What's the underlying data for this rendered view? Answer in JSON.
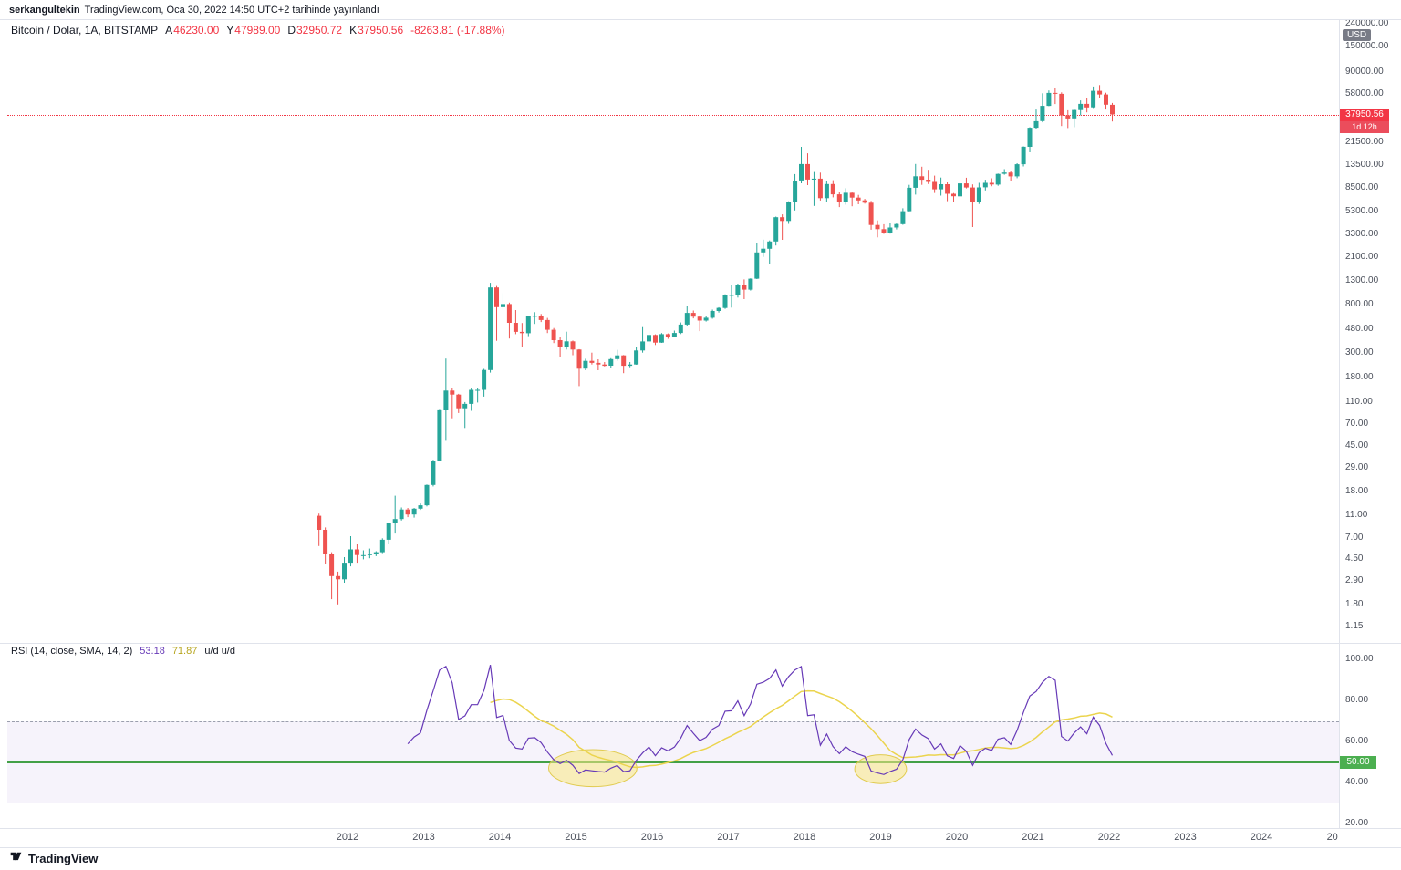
{
  "header": {
    "author": "serkangultekin",
    "published": "TradingView.com, Oca 30, 2022 14:50 UTC+2 tarihinde yayınlandı"
  },
  "symbol": {
    "title": "Bitcoin / Dolar, 1A, BITSTAMP",
    "ohlc": [
      {
        "k": "A",
        "v": "46230.00"
      },
      {
        "k": "Y",
        "v": "47989.00"
      },
      {
        "k": "D",
        "v": "32950.72"
      },
      {
        "k": "K",
        "v": "37950.56"
      }
    ],
    "change": "-8263.81 (-17.88%)"
  },
  "price_axis": {
    "currency": "USD",
    "last_price": "37950.56",
    "countdown": "1d 12h",
    "ticks": [
      "240000.00",
      "150000.00",
      "90000.00",
      "58000.00",
      "21500.00",
      "13500.00",
      "8500.00",
      "5300.00",
      "3300.00",
      "2100.00",
      "1300.00",
      "800.00",
      "480.00",
      "300.00",
      "180.00",
      "110.00",
      "70.00",
      "45.00",
      "29.00",
      "18.00",
      "11.00",
      "7.00",
      "4.50",
      "2.90",
      "1.80",
      "1.15"
    ]
  },
  "rsi": {
    "legend_title": "RSI (14, close, SMA, 14, 2)",
    "rsi_value": "53.18",
    "ma_value": "71.87",
    "extra": "u/d  u/d",
    "ticks": [
      "100.00",
      "80.00",
      "60.00",
      "40.00",
      "20.00"
    ],
    "mid_badge": "50.00"
  },
  "time_axis": {
    "ticks": [
      {
        "label": "2012",
        "t": 2012
      },
      {
        "label": "2013",
        "t": 2013
      },
      {
        "label": "2014",
        "t": 2014
      },
      {
        "label": "2015",
        "t": 2015
      },
      {
        "label": "2016",
        "t": 2016
      },
      {
        "label": "2017",
        "t": 2017
      },
      {
        "label": "2018",
        "t": 2018
      },
      {
        "label": "2019",
        "t": 2019
      },
      {
        "label": "2020",
        "t": 2020
      },
      {
        "label": "2021",
        "t": 2021
      },
      {
        "label": "2022",
        "t": 2022
      },
      {
        "label": "2023",
        "t": 2023
      },
      {
        "label": "2024",
        "t": 2024
      },
      {
        "label": "20",
        "t": 2024.93
      }
    ]
  },
  "footer": {
    "brand": "TradingView"
  },
  "colors": {
    "candle_up": "#26a69a",
    "candle_down": "#ef5350",
    "last_price_badge": "#f23645",
    "countdown_badge": "#eb4d5c",
    "last_price_line": "#f23645",
    "rsi_line": "#673ab7",
    "rsi_ma": "#eBd44d",
    "rsi_band_fill": "rgba(103,58,183,0.06)",
    "rsi_band_border": "#9b9fad",
    "mid_line": "#43a047",
    "mid_badge": "#4caf50",
    "usd_badge": "#787b86",
    "axis_text": "#4a4f5a",
    "highlight_fill": "rgba(249,231,132,0.55)",
    "highlight_stroke": "rgba(222,199,63,0.9)"
  },
  "chart_data": {
    "type": "candlestick",
    "title": "Bitcoin / Dolar, 1A, BITSTAMP",
    "interval": "1 month",
    "price_scale": "log",
    "price_range": [
      1.15,
      240000
    ],
    "grid": "off",
    "last": {
      "open": 46230.0,
      "high": 47989.0,
      "low": 32950.72,
      "close": 37950.56,
      "change": -8263.81,
      "change_pct": -17.88
    },
    "candles_format": [
      "month",
      "open",
      "high",
      "low",
      "close"
    ],
    "candles": [
      [
        "2011-08",
        10.9,
        11.4,
        5.9,
        8.2
      ],
      [
        "2011-09",
        8.2,
        8.6,
        4.1,
        5.0
      ],
      [
        "2011-10",
        5.0,
        5.2,
        2.0,
        3.2
      ],
      [
        "2011-11",
        3.2,
        3.5,
        1.8,
        3.0
      ],
      [
        "2011-12",
        3.0,
        4.7,
        2.8,
        4.2
      ],
      [
        "2012-01",
        4.2,
        7.2,
        3.9,
        5.5
      ],
      [
        "2012-02",
        5.5,
        6.2,
        4.2,
        4.9
      ],
      [
        "2012-03",
        4.9,
        5.4,
        4.5,
        4.9
      ],
      [
        "2012-04",
        4.9,
        5.6,
        4.6,
        5.0
      ],
      [
        "2012-05",
        5.0,
        5.3,
        4.8,
        5.2
      ],
      [
        "2012-06",
        5.2,
        6.9,
        5.1,
        6.7
      ],
      [
        "2012-07",
        6.7,
        9.5,
        6.2,
        9.4
      ],
      [
        "2012-08",
        9.4,
        16.4,
        7.6,
        10.2
      ],
      [
        "2012-09",
        10.2,
        12.9,
        9.9,
        12.4
      ],
      [
        "2012-10",
        12.4,
        12.8,
        10.6,
        11.2
      ],
      [
        "2012-11",
        11.2,
        12.8,
        10.5,
        12.6
      ],
      [
        "2012-12",
        12.6,
        14.0,
        12.3,
        13.5
      ],
      [
        "2013-01",
        13.5,
        20.6,
        13.2,
        20.4
      ],
      [
        "2013-02",
        20.4,
        34.0,
        19.8,
        33.4
      ],
      [
        "2013-03",
        33.4,
        94.0,
        33.0,
        93.0
      ],
      [
        "2013-04",
        93.0,
        266.0,
        50.0,
        139.0
      ],
      [
        "2013-05",
        139.0,
        147.0,
        79.0,
        128.0
      ],
      [
        "2013-06",
        128.0,
        130.0,
        88.0,
        97.0
      ],
      [
        "2013-07",
        97.0,
        110.0,
        65.0,
        106.0
      ],
      [
        "2013-08",
        106.0,
        147.0,
        92.0,
        141.0
      ],
      [
        "2013-09",
        141.0,
        147.0,
        109.0,
        141.0
      ],
      [
        "2013-10",
        141.0,
        216.0,
        123.0,
        211.0
      ],
      [
        "2013-11",
        211.0,
        1242.0,
        200.0,
        1130.0
      ],
      [
        "2013-12",
        1130.0,
        1163.0,
        382.0,
        757.0
      ],
      [
        "2014-01",
        757.0,
        1010.0,
        720.0,
        806.0
      ],
      [
        "2014-02",
        806.0,
        830.0,
        400.0,
        550.0
      ],
      [
        "2014-03",
        550.0,
        713.0,
        437.0,
        458.0
      ],
      [
        "2014-04",
        458.0,
        548.0,
        340.0,
        446.0
      ],
      [
        "2014-05",
        446.0,
        635.0,
        420.0,
        627.0
      ],
      [
        "2014-06",
        627.0,
        683.0,
        538.0,
        635.0
      ],
      [
        "2014-07",
        635.0,
        658.0,
        560.0,
        583.0
      ],
      [
        "2014-08",
        583.0,
        608.0,
        447.0,
        478.0
      ],
      [
        "2014-09",
        478.0,
        495.0,
        365.0,
        387.0
      ],
      [
        "2014-10",
        387.0,
        412.0,
        275.0,
        338.0
      ],
      [
        "2014-11",
        338.0,
        460.0,
        320.0,
        378.0
      ],
      [
        "2014-12",
        378.0,
        384.0,
        285.0,
        320.0
      ],
      [
        "2015-01",
        320.0,
        322.0,
        152.0,
        217.0
      ],
      [
        "2015-02",
        217.0,
        265.0,
        210.0,
        254.0
      ],
      [
        "2015-03",
        254.0,
        300.0,
        236.0,
        244.0
      ],
      [
        "2015-04",
        244.0,
        262.0,
        210.0,
        236.0
      ],
      [
        "2015-05",
        236.0,
        248.0,
        227.0,
        230.0
      ],
      [
        "2015-06",
        230.0,
        268.0,
        219.0,
        263.0
      ],
      [
        "2015-07",
        263.0,
        318.0,
        255.0,
        284.0
      ],
      [
        "2015-08",
        284.0,
        286.0,
        198.0,
        230.0
      ],
      [
        "2015-09",
        230.0,
        248.0,
        223.0,
        236.0
      ],
      [
        "2015-10",
        236.0,
        334.0,
        235.0,
        314.0
      ],
      [
        "2015-11",
        314.0,
        504.0,
        300.0,
        377.0
      ],
      [
        "2015-12",
        377.0,
        467.0,
        350.0,
        430.0
      ],
      [
        "2016-01",
        430.0,
        436.0,
        351.0,
        368.0
      ],
      [
        "2016-02",
        368.0,
        447.0,
        366.0,
        437.0
      ],
      [
        "2016-03",
        437.0,
        444.0,
        398.0,
        416.0
      ],
      [
        "2016-04",
        416.0,
        470.0,
        412.0,
        448.0
      ],
      [
        "2016-05",
        448.0,
        554.0,
        438.0,
        531.0
      ],
      [
        "2016-06",
        531.0,
        780.0,
        516.0,
        673.0
      ],
      [
        "2016-07",
        673.0,
        706.0,
        603.0,
        624.0
      ],
      [
        "2016-08",
        624.0,
        639.0,
        465.0,
        576.0
      ],
      [
        "2016-09",
        576.0,
        629.0,
        565.0,
        610.0
      ],
      [
        "2016-10",
        610.0,
        720.0,
        598.0,
        700.0
      ],
      [
        "2016-11",
        700.0,
        755.0,
        678.0,
        745.0
      ],
      [
        "2016-12",
        745.0,
        982.0,
        730.0,
        963.0
      ],
      [
        "2017-01",
        963.0,
        1191.0,
        750.0,
        970.0
      ],
      [
        "2017-02",
        970.0,
        1220.0,
        920.0,
        1180.0
      ],
      [
        "2017-03",
        1180.0,
        1330.0,
        891.0,
        1080.0
      ],
      [
        "2017-04",
        1080.0,
        1360.0,
        1060.0,
        1350.0
      ],
      [
        "2017-05",
        1350.0,
        2780.0,
        1340.0,
        2300.0
      ],
      [
        "2017-06",
        2300.0,
        2980.0,
        2100.0,
        2480.0
      ],
      [
        "2017-07",
        2480.0,
        2930.0,
        1830.0,
        2875.0
      ],
      [
        "2017-08",
        2875.0,
        4765.0,
        2650.0,
        4703.0
      ],
      [
        "2017-09",
        4703.0,
        4980.0,
        2970.0,
        4360.0
      ],
      [
        "2017-10",
        4360.0,
        6500.0,
        4110.0,
        6468.0
      ],
      [
        "2017-11",
        6468.0,
        11300.0,
        5400.0,
        9916.0
      ],
      [
        "2017-12",
        9916.0,
        19666.0,
        9380.0,
        13850.0
      ],
      [
        "2018-01",
        13850.0,
        17234.0,
        9035.0,
        10100.0
      ],
      [
        "2018-02",
        10100.0,
        11786.0,
        5920.0,
        10300.0
      ],
      [
        "2018-03",
        10300.0,
        11650.0,
        6600.0,
        6928.0
      ],
      [
        "2018-04",
        6928.0,
        9760.0,
        6425.0,
        9240.0
      ],
      [
        "2018-05",
        9240.0,
        9990.0,
        7040.0,
        7494.0
      ],
      [
        "2018-06",
        7494.0,
        7780.0,
        5780.0,
        6404.0
      ],
      [
        "2018-07",
        6404.0,
        8480.0,
        6070.0,
        7729.0
      ],
      [
        "2018-08",
        7729.0,
        7770.0,
        5880.0,
        7011.0
      ],
      [
        "2018-09",
        7011.0,
        7410.0,
        6120.0,
        6625.0
      ],
      [
        "2018-10",
        6625.0,
        6830.0,
        6200.0,
        6317.0
      ],
      [
        "2018-11",
        6317.0,
        6550.0,
        3650.0,
        4017.0
      ],
      [
        "2018-12",
        4017.0,
        4410.0,
        3122.0,
        3689.0
      ],
      [
        "2019-01",
        3689.0,
        4080.0,
        3350.0,
        3437.0
      ],
      [
        "2019-02",
        3437.0,
        4199.0,
        3373.0,
        3816.0
      ],
      [
        "2019-03",
        3816.0,
        4140.0,
        3670.0,
        4092.0
      ],
      [
        "2019-04",
        4092.0,
        5640.0,
        4030.0,
        5320.0
      ],
      [
        "2019-05",
        5320.0,
        9090.0,
        5300.0,
        8558.0
      ],
      [
        "2019-06",
        8558.0,
        13880.0,
        7450.0,
        10817.0
      ],
      [
        "2019-07",
        10817.0,
        13130.0,
        9080.0,
        10085.0
      ],
      [
        "2019-08",
        10085.0,
        12325.0,
        9230.0,
        9630.0
      ],
      [
        "2019-09",
        9630.0,
        10950.0,
        7700.0,
        8293.0
      ],
      [
        "2019-10",
        8293.0,
        10540.0,
        7293.0,
        9199.0
      ],
      [
        "2019-11",
        9199.0,
        9550.0,
        6515.0,
        7569.0
      ],
      [
        "2019-12",
        7569.0,
        7690.0,
        6435.0,
        7193.0
      ],
      [
        "2020-01",
        7193.0,
        9570.0,
        6850.0,
        9350.0
      ],
      [
        "2020-02",
        9350.0,
        10500.0,
        8445.0,
        8599.0
      ],
      [
        "2020-03",
        8599.0,
        9170.0,
        3850.0,
        6438.0
      ],
      [
        "2020-04",
        6438.0,
        9460.0,
        6150.0,
        8629.0
      ],
      [
        "2020-05",
        8629.0,
        10070.0,
        8110.0,
        9454.0
      ],
      [
        "2020-06",
        9454.0,
        10380.0,
        8830.0,
        9137.0
      ],
      [
        "2020-07",
        9137.0,
        11420.0,
        8910.0,
        11351.0
      ],
      [
        "2020-08",
        11351.0,
        12480.0,
        11150.0,
        11655.0
      ],
      [
        "2020-09",
        11655.0,
        12070.0,
        9825.0,
        10776.0
      ],
      [
        "2020-10",
        10776.0,
        14100.0,
        10400.0,
        13797.0
      ],
      [
        "2020-11",
        13797.0,
        19863.0,
        13200.0,
        19698.0
      ],
      [
        "2020-12",
        19698.0,
        29300.0,
        17600.0,
        28990.0
      ],
      [
        "2021-01",
        28990.0,
        42000.0,
        28130.0,
        33114.0
      ],
      [
        "2021-02",
        33114.0,
        58352.0,
        32380.0,
        45164.0
      ],
      [
        "2021-03",
        45164.0,
        61844.0,
        44950.0,
        58763.0
      ],
      [
        "2021-04",
        58763.0,
        64900.0,
        46930.0,
        57720.0
      ],
      [
        "2021-05",
        57720.0,
        59500.0,
        30000.0,
        37298.0
      ],
      [
        "2021-06",
        37298.0,
        41330.0,
        28800.0,
        35026.0
      ],
      [
        "2021-07",
        35026.0,
        42448.0,
        29300.0,
        41553.0
      ],
      [
        "2021-08",
        41553.0,
        50500.0,
        37332.0,
        47112.0
      ],
      [
        "2021-09",
        47112.0,
        52920.0,
        39600.0,
        43824.0
      ],
      [
        "2021-10",
        43824.0,
        66999.0,
        43283.0,
        61318.0
      ],
      [
        "2021-11",
        61318.0,
        69000.0,
        53256.0,
        56950.0
      ],
      [
        "2021-12",
        56950.0,
        59053.0,
        42000.0,
        46306.0
      ],
      [
        "2022-01",
        46230.0,
        47989.0,
        32950.72,
        37950.56
      ]
    ],
    "indicator": {
      "name": "RSI",
      "period": 14,
      "source": "close",
      "smoothing_ma": "SMA 14",
      "levels": {
        "upper": 70,
        "middle": 50,
        "lower": 30
      },
      "range_ticks": [
        100,
        80,
        60,
        40,
        20
      ],
      "current": 53.18,
      "ma_current": 71.87
    },
    "annotations": [
      {
        "type": "ellipse",
        "pane": "rsi",
        "cx_year": 2015.22,
        "cy_rsi": 47.0,
        "rx_years": 0.58,
        "ry_rsi": 9.0
      },
      {
        "type": "ellipse",
        "pane": "rsi",
        "cx_year": 2019.0,
        "cy_rsi": 46.5,
        "rx_years": 0.34,
        "ry_rsi": 7.0
      }
    ]
  }
}
